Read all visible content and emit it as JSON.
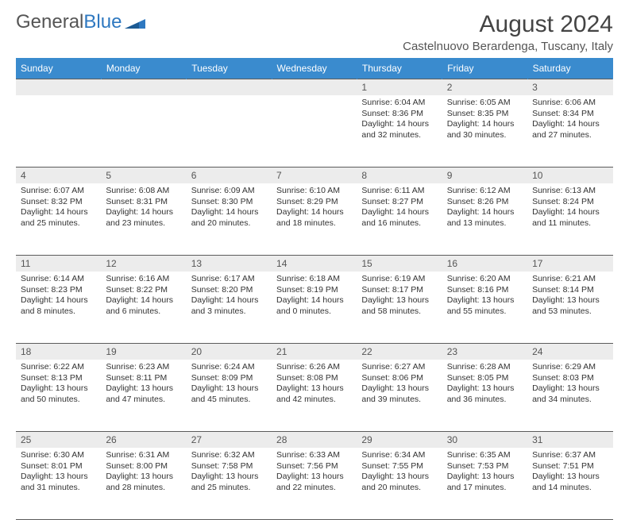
{
  "logo": {
    "text1": "General",
    "text2": "Blue"
  },
  "title": "August 2024",
  "location": "Castelnuovo Berardenga, Tuscany, Italy",
  "headers": [
    "Sunday",
    "Monday",
    "Tuesday",
    "Wednesday",
    "Thursday",
    "Friday",
    "Saturday"
  ],
  "colors": {
    "header_bg": "#3a8bce",
    "header_fg": "#ffffff",
    "daynum_bg": "#ececec",
    "divider": "#5b5b5b"
  },
  "weeks": [
    [
      {
        "n": "",
        "sr": "",
        "ss": "",
        "dl": ""
      },
      {
        "n": "",
        "sr": "",
        "ss": "",
        "dl": ""
      },
      {
        "n": "",
        "sr": "",
        "ss": "",
        "dl": ""
      },
      {
        "n": "",
        "sr": "",
        "ss": "",
        "dl": ""
      },
      {
        "n": "1",
        "sr": "Sunrise: 6:04 AM",
        "ss": "Sunset: 8:36 PM",
        "dl": "Daylight: 14 hours and 32 minutes."
      },
      {
        "n": "2",
        "sr": "Sunrise: 6:05 AM",
        "ss": "Sunset: 8:35 PM",
        "dl": "Daylight: 14 hours and 30 minutes."
      },
      {
        "n": "3",
        "sr": "Sunrise: 6:06 AM",
        "ss": "Sunset: 8:34 PM",
        "dl": "Daylight: 14 hours and 27 minutes."
      }
    ],
    [
      {
        "n": "4",
        "sr": "Sunrise: 6:07 AM",
        "ss": "Sunset: 8:32 PM",
        "dl": "Daylight: 14 hours and 25 minutes."
      },
      {
        "n": "5",
        "sr": "Sunrise: 6:08 AM",
        "ss": "Sunset: 8:31 PM",
        "dl": "Daylight: 14 hours and 23 minutes."
      },
      {
        "n": "6",
        "sr": "Sunrise: 6:09 AM",
        "ss": "Sunset: 8:30 PM",
        "dl": "Daylight: 14 hours and 20 minutes."
      },
      {
        "n": "7",
        "sr": "Sunrise: 6:10 AM",
        "ss": "Sunset: 8:29 PM",
        "dl": "Daylight: 14 hours and 18 minutes."
      },
      {
        "n": "8",
        "sr": "Sunrise: 6:11 AM",
        "ss": "Sunset: 8:27 PM",
        "dl": "Daylight: 14 hours and 16 minutes."
      },
      {
        "n": "9",
        "sr": "Sunrise: 6:12 AM",
        "ss": "Sunset: 8:26 PM",
        "dl": "Daylight: 14 hours and 13 minutes."
      },
      {
        "n": "10",
        "sr": "Sunrise: 6:13 AM",
        "ss": "Sunset: 8:24 PM",
        "dl": "Daylight: 14 hours and 11 minutes."
      }
    ],
    [
      {
        "n": "11",
        "sr": "Sunrise: 6:14 AM",
        "ss": "Sunset: 8:23 PM",
        "dl": "Daylight: 14 hours and 8 minutes."
      },
      {
        "n": "12",
        "sr": "Sunrise: 6:16 AM",
        "ss": "Sunset: 8:22 PM",
        "dl": "Daylight: 14 hours and 6 minutes."
      },
      {
        "n": "13",
        "sr": "Sunrise: 6:17 AM",
        "ss": "Sunset: 8:20 PM",
        "dl": "Daylight: 14 hours and 3 minutes."
      },
      {
        "n": "14",
        "sr": "Sunrise: 6:18 AM",
        "ss": "Sunset: 8:19 PM",
        "dl": "Daylight: 14 hours and 0 minutes."
      },
      {
        "n": "15",
        "sr": "Sunrise: 6:19 AM",
        "ss": "Sunset: 8:17 PM",
        "dl": "Daylight: 13 hours and 58 minutes."
      },
      {
        "n": "16",
        "sr": "Sunrise: 6:20 AM",
        "ss": "Sunset: 8:16 PM",
        "dl": "Daylight: 13 hours and 55 minutes."
      },
      {
        "n": "17",
        "sr": "Sunrise: 6:21 AM",
        "ss": "Sunset: 8:14 PM",
        "dl": "Daylight: 13 hours and 53 minutes."
      }
    ],
    [
      {
        "n": "18",
        "sr": "Sunrise: 6:22 AM",
        "ss": "Sunset: 8:13 PM",
        "dl": "Daylight: 13 hours and 50 minutes."
      },
      {
        "n": "19",
        "sr": "Sunrise: 6:23 AM",
        "ss": "Sunset: 8:11 PM",
        "dl": "Daylight: 13 hours and 47 minutes."
      },
      {
        "n": "20",
        "sr": "Sunrise: 6:24 AM",
        "ss": "Sunset: 8:09 PM",
        "dl": "Daylight: 13 hours and 45 minutes."
      },
      {
        "n": "21",
        "sr": "Sunrise: 6:26 AM",
        "ss": "Sunset: 8:08 PM",
        "dl": "Daylight: 13 hours and 42 minutes."
      },
      {
        "n": "22",
        "sr": "Sunrise: 6:27 AM",
        "ss": "Sunset: 8:06 PM",
        "dl": "Daylight: 13 hours and 39 minutes."
      },
      {
        "n": "23",
        "sr": "Sunrise: 6:28 AM",
        "ss": "Sunset: 8:05 PM",
        "dl": "Daylight: 13 hours and 36 minutes."
      },
      {
        "n": "24",
        "sr": "Sunrise: 6:29 AM",
        "ss": "Sunset: 8:03 PM",
        "dl": "Daylight: 13 hours and 34 minutes."
      }
    ],
    [
      {
        "n": "25",
        "sr": "Sunrise: 6:30 AM",
        "ss": "Sunset: 8:01 PM",
        "dl": "Daylight: 13 hours and 31 minutes."
      },
      {
        "n": "26",
        "sr": "Sunrise: 6:31 AM",
        "ss": "Sunset: 8:00 PM",
        "dl": "Daylight: 13 hours and 28 minutes."
      },
      {
        "n": "27",
        "sr": "Sunrise: 6:32 AM",
        "ss": "Sunset: 7:58 PM",
        "dl": "Daylight: 13 hours and 25 minutes."
      },
      {
        "n": "28",
        "sr": "Sunrise: 6:33 AM",
        "ss": "Sunset: 7:56 PM",
        "dl": "Daylight: 13 hours and 22 minutes."
      },
      {
        "n": "29",
        "sr": "Sunrise: 6:34 AM",
        "ss": "Sunset: 7:55 PM",
        "dl": "Daylight: 13 hours and 20 minutes."
      },
      {
        "n": "30",
        "sr": "Sunrise: 6:35 AM",
        "ss": "Sunset: 7:53 PM",
        "dl": "Daylight: 13 hours and 17 minutes."
      },
      {
        "n": "31",
        "sr": "Sunrise: 6:37 AM",
        "ss": "Sunset: 7:51 PM",
        "dl": "Daylight: 13 hours and 14 minutes."
      }
    ]
  ]
}
